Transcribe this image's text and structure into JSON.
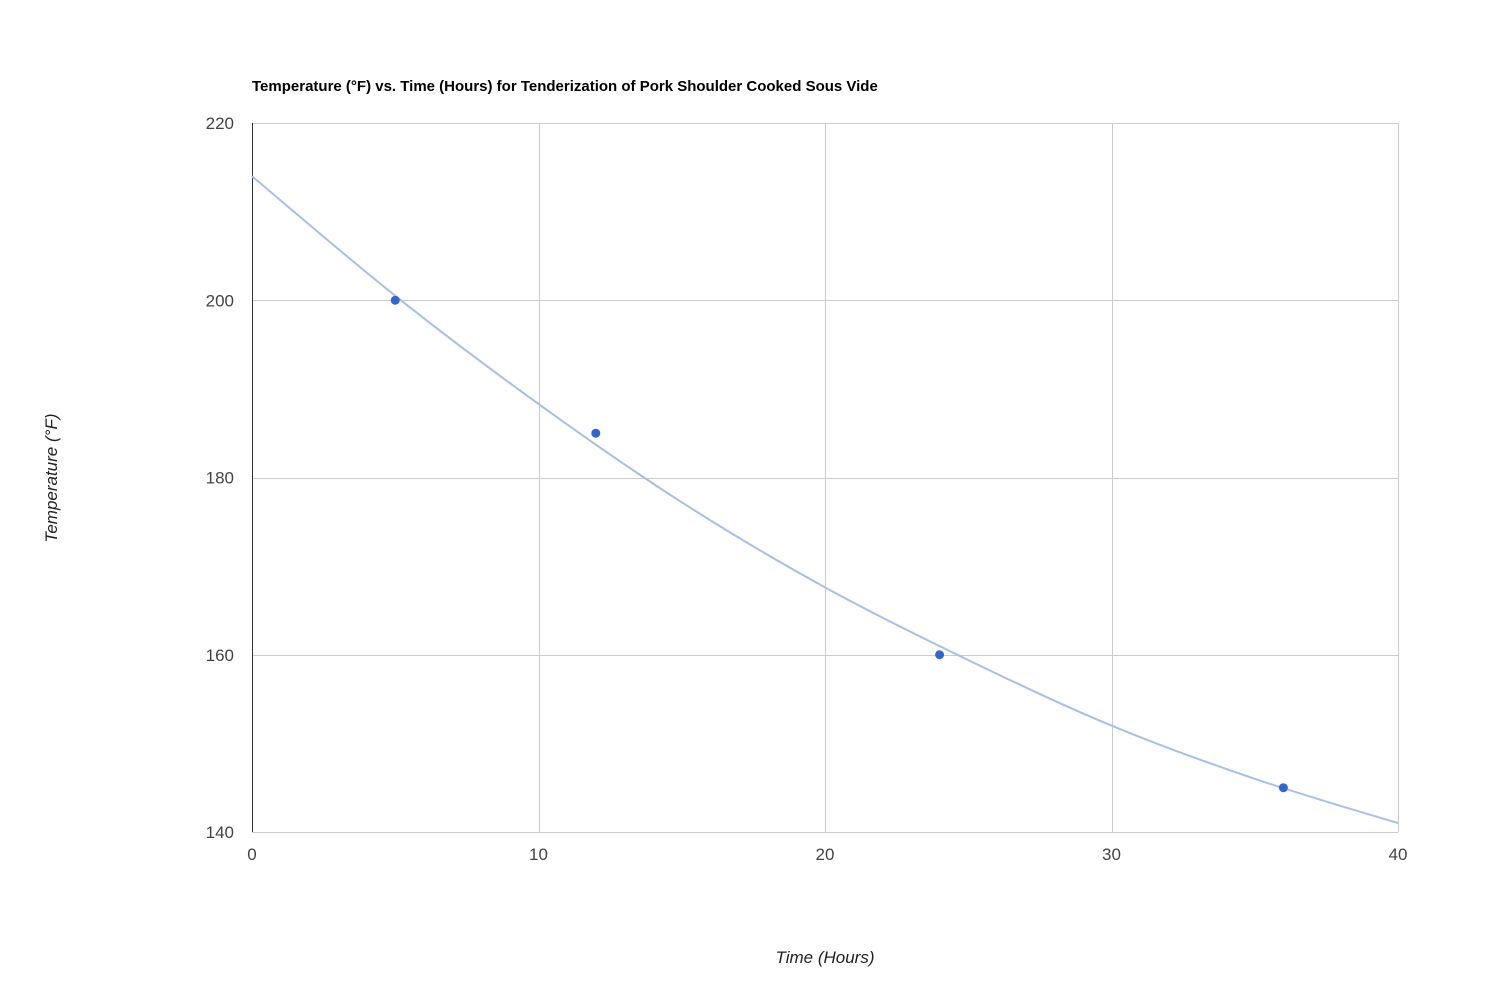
{
  "chart_data": {
    "type": "scatter",
    "title": "Temperature (°F) vs. Time (Hours) for Tenderization of Pork Shoulder Cooked Sous Vide",
    "xlabel": "Time (Hours)",
    "ylabel": "Temperature (°F)",
    "xlim": [
      0,
      40
    ],
    "ylim": [
      140,
      220
    ],
    "xticks": [
      0,
      10,
      20,
      30,
      40
    ],
    "yticks": [
      140,
      160,
      180,
      200,
      220
    ],
    "xtick_labels": [
      "0",
      "10",
      "20",
      "30",
      "40"
    ],
    "ytick_labels": [
      "140",
      "160",
      "180",
      "200",
      "220"
    ],
    "grid": true,
    "legend": "none",
    "series": [
      {
        "x": [
          5,
          12,
          24,
          36
        ],
        "y": [
          200,
          185,
          160,
          145
        ],
        "color": "#3366cc"
      }
    ],
    "trendline": {
      "type": "exponential",
      "color": "#a8bfe6",
      "points": [
        {
          "x": 0,
          "y": 214
        },
        {
          "x": 5,
          "y": 200.5
        },
        {
          "x": 10,
          "y": 188.3
        },
        {
          "x": 15,
          "y": 177.2
        },
        {
          "x": 20,
          "y": 167.6
        },
        {
          "x": 25,
          "y": 159.4
        },
        {
          "x": 30,
          "y": 152
        },
        {
          "x": 35,
          "y": 146
        },
        {
          "x": 40,
          "y": 141
        }
      ]
    }
  }
}
